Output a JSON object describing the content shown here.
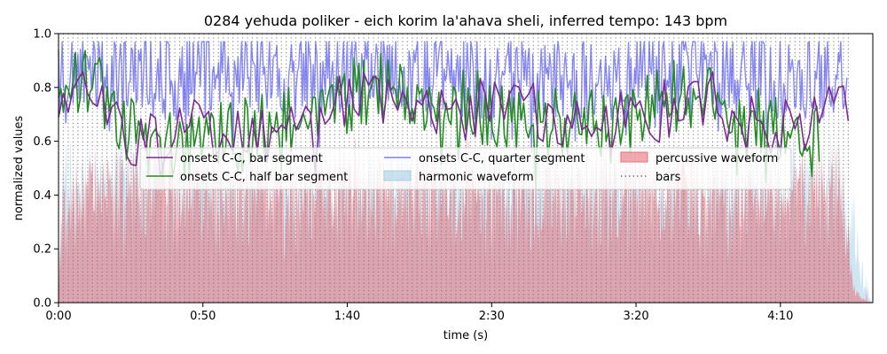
{
  "chart_data": {
    "type": "line",
    "title": "0284 yehuda poliker - eich korim la'ahava sheli, inferred tempo: 143 bpm",
    "xlabel": "time (s)",
    "ylabel": "normalized values",
    "xlim": [
      0,
      282
    ],
    "ylim": [
      0,
      1.0
    ],
    "x_ticks": [
      0,
      50,
      100,
      150,
      200,
      250
    ],
    "x_tick_labels": [
      "0:00",
      "0:50",
      "1:40",
      "2:30",
      "3:20",
      "4:10"
    ],
    "y_ticks": [
      0,
      0.2,
      0.4,
      0.6,
      0.8,
      1.0
    ],
    "y_tick_labels": [
      "0.0",
      "0.2",
      "0.4",
      "0.6",
      "0.8",
      "1.0"
    ],
    "tempo_bpm": 143,
    "bar_interval_s": 1.678,
    "bars_end_s": 274,
    "legend_position": "center",
    "grid": false,
    "series": [
      {
        "name": "onsets C-C, bar segment",
        "kind": "line",
        "color": "#7b2a8f",
        "step_s": 1.678,
        "x_start": 0,
        "x_end": 274,
        "baseline": 0.68,
        "amplitude": 0.12,
        "peaks": [
          [
            0,
            0.74
          ],
          [
            2,
            0.78
          ],
          [
            6,
            0.84
          ],
          [
            12,
            0.9
          ],
          [
            15,
            0.85
          ],
          [
            20,
            0.76
          ],
          [
            22,
            0.55
          ],
          [
            32,
            0.58
          ],
          [
            45,
            0.72
          ],
          [
            60,
            0.5
          ],
          [
            100,
            0.8
          ],
          [
            118,
            0.88
          ],
          [
            140,
            0.78
          ],
          [
            165,
            0.75
          ],
          [
            180,
            0.7
          ],
          [
            185,
            0.62
          ],
          [
            215,
            0.78
          ],
          [
            225,
            0.85
          ],
          [
            240,
            0.62
          ],
          [
            268,
            0.72
          ],
          [
            271,
            0.85
          ],
          [
            273,
            0.82
          ]
        ]
      },
      {
        "name": "onsets C-C, half bar segment",
        "kind": "line",
        "color": "#228b22",
        "step_s": 0.839,
        "x_start": 0,
        "x_end": 264,
        "baseline": 0.72,
        "amplitude": 0.14,
        "peaks": [
          [
            0,
            0.9
          ],
          [
            3,
            0.86
          ],
          [
            13,
            0.96
          ],
          [
            21,
            0.6
          ],
          [
            31,
            0.36
          ],
          [
            60,
            0.48
          ],
          [
            114,
            0.93
          ],
          [
            168,
            0.6
          ],
          [
            191,
            0.58
          ],
          [
            220,
            0.88
          ],
          [
            235,
            0.58
          ],
          [
            255,
            0.61
          ],
          [
            262,
            0.43
          ],
          [
            264,
            0.6
          ]
        ]
      },
      {
        "name": "onsets C-C, quarter segment",
        "kind": "line",
        "color": "#4a4aee",
        "step_s": 0.42,
        "x_start": 0,
        "x_end": 273,
        "baseline": 0.78,
        "amplitude": 0.16,
        "peaks": [
          [
            1,
            0.93
          ],
          [
            16,
            0.95
          ],
          [
            35,
            0.92
          ],
          [
            60,
            0.95
          ],
          [
            105,
            0.95
          ],
          [
            150,
            0.92
          ],
          [
            183,
            0.88
          ],
          [
            212,
            0.95
          ],
          [
            262,
            0.9
          ],
          [
            270,
            0.96
          ],
          [
            273,
            0.74
          ]
        ]
      },
      {
        "name": "harmonic waveform",
        "kind": "area",
        "color": "#a8cfe6",
        "x_start": 0,
        "x_end": 282,
        "envelope": [
          [
            0,
            0.0
          ],
          [
            1,
            0.55
          ],
          [
            10,
            0.62
          ],
          [
            30,
            0.6
          ],
          [
            60,
            0.58
          ],
          [
            100,
            0.6
          ],
          [
            150,
            0.58
          ],
          [
            200,
            0.6
          ],
          [
            250,
            0.58
          ],
          [
            272,
            0.62
          ],
          [
            275,
            0.42
          ],
          [
            278,
            0.12
          ],
          [
            280,
            0.04
          ],
          [
            282,
            0.0
          ]
        ]
      },
      {
        "name": "percussive waveform",
        "kind": "area",
        "color": "#e8707a",
        "x_start": 0,
        "x_end": 282,
        "envelope": [
          [
            0,
            0.0
          ],
          [
            1,
            0.45
          ],
          [
            10,
            0.55
          ],
          [
            30,
            0.6
          ],
          [
            60,
            0.55
          ],
          [
            100,
            0.58
          ],
          [
            150,
            0.55
          ],
          [
            200,
            0.57
          ],
          [
            250,
            0.52
          ],
          [
            272,
            0.55
          ],
          [
            275,
            0.1
          ],
          [
            278,
            0.02
          ],
          [
            282,
            0.0
          ]
        ]
      },
      {
        "name": "bars",
        "kind": "vlines",
        "color": "#777777"
      }
    ]
  }
}
